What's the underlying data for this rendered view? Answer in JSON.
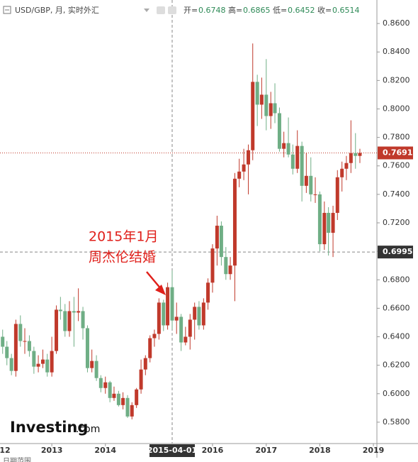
{
  "header": {
    "title": "USD/GBP, 月, 实时外汇",
    "open_label": "开=",
    "open": 0.6748,
    "high_label": "高=",
    "high": 0.6865,
    "low_label": "低=",
    "low": 0.6452,
    "close_label": "收=",
    "close": 0.6514
  },
  "chart_data": {
    "type": "candlestick",
    "x": [
      "2012-02-01",
      "2012-03-01",
      "2012-04-01",
      "2012-05-01",
      "2012-06-01",
      "2012-07-01",
      "2012-08-01",
      "2012-09-01",
      "2012-10-01",
      "2012-11-01",
      "2012-12-01",
      "2013-01-01",
      "2013-02-01",
      "2013-03-01",
      "2013-04-01",
      "2013-05-01",
      "2013-06-01",
      "2013-07-01",
      "2013-08-01",
      "2013-09-01",
      "2013-10-01",
      "2013-11-01",
      "2013-12-01",
      "2014-01-01",
      "2014-02-01",
      "2014-03-01",
      "2014-04-01",
      "2014-05-01",
      "2014-06-01",
      "2014-07-01",
      "2014-08-01",
      "2014-09-01",
      "2014-10-01",
      "2014-11-01",
      "2014-12-01",
      "2015-01-01",
      "2015-02-01",
      "2015-03-01",
      "2015-04-01",
      "2015-05-01",
      "2015-06-01",
      "2015-07-01",
      "2015-08-01",
      "2015-09-01",
      "2015-10-01",
      "2015-11-01",
      "2015-12-01",
      "2016-01-01",
      "2016-02-01",
      "2016-03-01",
      "2016-04-01",
      "2016-05-01",
      "2016-06-01",
      "2016-07-01",
      "2016-08-01",
      "2016-09-01",
      "2016-10-01",
      "2016-11-01",
      "2016-12-01",
      "2017-01-01",
      "2017-02-01",
      "2017-03-01",
      "2017-04-01",
      "2017-05-01",
      "2017-06-01",
      "2017-07-01",
      "2017-08-01",
      "2017-09-01",
      "2017-10-01",
      "2017-11-01",
      "2017-12-01",
      "2018-01-01",
      "2018-02-01",
      "2018-03-01",
      "2018-04-01",
      "2018-05-01",
      "2018-06-01",
      "2018-07-01",
      "2018-08-01",
      "2018-09-01",
      "2018-10-01"
    ],
    "open": [
      0.64,
      0.633,
      0.625,
      0.616,
      0.649,
      0.637,
      0.637,
      0.63,
      0.619,
      0.621,
      0.624,
      0.615,
      0.63,
      0.659,
      0.658,
      0.644,
      0.658,
      0.657,
      0.658,
      0.646,
      0.618,
      0.623,
      0.611,
      0.604,
      0.608,
      0.597,
      0.6,
      0.592,
      0.597,
      0.584,
      0.592,
      0.603,
      0.617,
      0.625,
      0.639,
      0.642,
      0.664,
      0.648,
      0.6748,
      0.6514,
      0.654,
      0.636,
      0.64,
      0.652,
      0.661,
      0.648,
      0.664,
      0.678,
      0.702,
      0.718,
      0.696,
      0.684,
      0.69,
      0.751,
      0.756,
      0.761,
      0.771,
      0.819,
      0.803,
      0.81,
      0.795,
      0.804,
      0.797,
      0.772,
      0.776,
      0.768,
      0.758,
      0.774,
      0.746,
      0.753,
      0.74,
      0.74,
      0.705,
      0.727,
      0.713,
      0.727,
      0.752,
      0.758,
      0.762,
      0.769,
      0.767
    ],
    "high": [
      0.645,
      0.637,
      0.628,
      0.652,
      0.655,
      0.646,
      0.641,
      0.633,
      0.627,
      0.631,
      0.628,
      0.64,
      0.662,
      0.668,
      0.663,
      0.665,
      0.668,
      0.674,
      0.661,
      0.648,
      0.631,
      0.627,
      0.613,
      0.612,
      0.609,
      0.605,
      0.602,
      0.601,
      0.599,
      0.594,
      0.604,
      0.624,
      0.627,
      0.641,
      0.645,
      0.667,
      0.666,
      0.678,
      0.6865,
      0.664,
      0.656,
      0.647,
      0.656,
      0.664,
      0.665,
      0.667,
      0.681,
      0.705,
      0.725,
      0.721,
      0.703,
      0.696,
      0.755,
      0.765,
      0.772,
      0.775,
      0.846,
      0.824,
      0.822,
      0.835,
      0.812,
      0.818,
      0.801,
      0.784,
      0.794,
      0.775,
      0.785,
      0.777,
      0.769,
      0.766,
      0.752,
      0.742,
      0.735,
      0.731,
      0.732,
      0.757,
      0.763,
      0.767,
      0.792,
      0.783,
      0.772
    ],
    "low": [
      0.628,
      0.62,
      0.613,
      0.612,
      0.633,
      0.628,
      0.626,
      0.614,
      0.615,
      0.618,
      0.612,
      0.612,
      0.628,
      0.652,
      0.64,
      0.64,
      0.633,
      0.651,
      0.638,
      0.615,
      0.615,
      0.609,
      0.601,
      0.6,
      0.594,
      0.595,
      0.591,
      0.589,
      0.583,
      0.582,
      0.59,
      0.6,
      0.613,
      0.622,
      0.633,
      0.638,
      0.644,
      0.645,
      0.6452,
      0.642,
      0.63,
      0.634,
      0.631,
      0.638,
      0.645,
      0.645,
      0.659,
      0.671,
      0.69,
      0.69,
      0.68,
      0.68,
      0.665,
      0.745,
      0.75,
      0.74,
      0.764,
      0.788,
      0.793,
      0.785,
      0.786,
      0.79,
      0.77,
      0.766,
      0.766,
      0.754,
      0.755,
      0.735,
      0.741,
      0.735,
      0.734,
      0.7,
      0.701,
      0.697,
      0.696,
      0.722,
      0.742,
      0.75,
      0.755,
      0.758,
      0.762
    ],
    "close": [
      0.633,
      0.625,
      0.616,
      0.649,
      0.637,
      0.637,
      0.63,
      0.619,
      0.621,
      0.624,
      0.615,
      0.63,
      0.659,
      0.658,
      0.644,
      0.658,
      0.657,
      0.658,
      0.646,
      0.618,
      0.623,
      0.611,
      0.604,
      0.608,
      0.597,
      0.6,
      0.592,
      0.597,
      0.584,
      0.592,
      0.603,
      0.617,
      0.625,
      0.639,
      0.642,
      0.664,
      0.648,
      0.6748,
      0.6514,
      0.654,
      0.636,
      0.64,
      0.652,
      0.661,
      0.648,
      0.664,
      0.678,
      0.702,
      0.718,
      0.696,
      0.684,
      0.69,
      0.751,
      0.756,
      0.761,
      0.771,
      0.819,
      0.803,
      0.81,
      0.795,
      0.804,
      0.797,
      0.772,
      0.776,
      0.768,
      0.758,
      0.774,
      0.746,
      0.753,
      0.74,
      0.74,
      0.705,
      0.727,
      0.713,
      0.727,
      0.752,
      0.758,
      0.762,
      0.769,
      0.767,
      0.7691
    ],
    "up_color": "#c0392b",
    "down_color": "#6fae85",
    "xlim": [
      "2012-01-14",
      "2019-01-25"
    ],
    "ylim": [
      0.565,
      0.8765
    ],
    "xticks": [
      {
        "value": "2012-01-01",
        "label": "12"
      },
      {
        "value": "2013-01-01",
        "label": "2013"
      },
      {
        "value": "2014-01-01",
        "label": "2014"
      },
      {
        "value": "2016-01-01",
        "label": "2016"
      },
      {
        "value": "2017-01-01",
        "label": "2017"
      },
      {
        "value": "2018-01-01",
        "label": "2018"
      },
      {
        "value": "2019-01-01",
        "label": "2019"
      }
    ],
    "yticks": [
      {
        "value": 0.58,
        "label": "0.5800"
      },
      {
        "value": 0.6,
        "label": "0.6000"
      },
      {
        "value": 0.62,
        "label": "0.6200"
      },
      {
        "value": 0.64,
        "label": "0.6400"
      },
      {
        "value": 0.66,
        "label": "0.6600"
      },
      {
        "value": 0.68,
        "label": "0.6800"
      },
      {
        "value": 0.7,
        "label": "0.7000"
      },
      {
        "value": 0.72,
        "label": "0.7200"
      },
      {
        "value": 0.74,
        "label": "0.7400"
      },
      {
        "value": 0.76,
        "label": "0.7600"
      },
      {
        "value": 0.78,
        "label": "0.7800"
      },
      {
        "value": 0.8,
        "label": "0.8000"
      },
      {
        "value": 0.82,
        "label": "0.8200"
      },
      {
        "value": 0.84,
        "label": "0.8400"
      },
      {
        "value": 0.86,
        "label": "0.8600"
      }
    ],
    "annotation": [
      "2015年1月",
      "周杰伦结婚"
    ],
    "crosshair": {
      "x": "2015-04-01",
      "y": 0.6995
    },
    "last_price": 0.7691
  },
  "logo": {
    "brand": "Investing",
    "suffix": ".com"
  },
  "footer": "日期范围"
}
